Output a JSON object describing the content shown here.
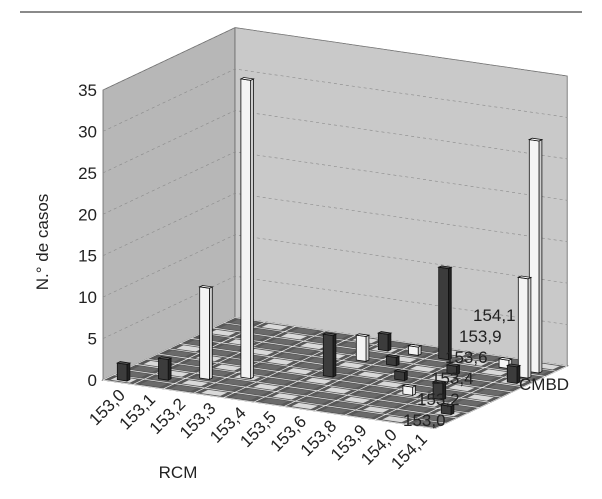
{
  "chart_data": {
    "type": "bar3d",
    "title": "",
    "ylabel": "N.° de casos",
    "xlabel": "RCM",
    "zlabel": "CMBD",
    "ylim": [
      0,
      35
    ],
    "yticks": [
      0,
      5,
      10,
      15,
      20,
      25,
      30,
      35
    ],
    "x_categories": [
      "153,0",
      "153,1",
      "153,2",
      "153,3",
      "153,4",
      "153,5",
      "153,6",
      "153,8",
      "153,9",
      "154,0",
      "154,1"
    ],
    "z_categories": [
      "153,0",
      "153,2",
      "153,4",
      "153,6",
      "153,9",
      "154,1"
    ],
    "z_tick_labels": [
      "153,0",
      "153,2",
      "153,4",
      "153,6",
      "153,9",
      "154,1"
    ],
    "bars": [
      {
        "x": "153,0",
        "z": "153,0",
        "value": 2
      },
      {
        "x": "153,1",
        "z": "153,1",
        "value": 2.5
      },
      {
        "x": "153,2",
        "z": "153,2",
        "value": 11
      },
      {
        "x": "153,3",
        "z": "153,3",
        "value": 36
      },
      {
        "x": "153,5",
        "z": "153,5",
        "value": 5
      },
      {
        "x": "153,5",
        "z": "153,9",
        "value": 3
      },
      {
        "x": "153,5",
        "z": "154,1",
        "value": 2
      },
      {
        "x": "153,6",
        "z": "153,9",
        "value": 1
      },
      {
        "x": "153,6",
        "z": "154,1",
        "value": 1
      },
      {
        "x": "153,8",
        "z": "153,6",
        "value": 1
      },
      {
        "x": "153,8",
        "z": "154,1",
        "value": 11
      },
      {
        "x": "153,9",
        "z": "153,4",
        "value": 1
      },
      {
        "x": "153,9",
        "z": "153,9",
        "value": 1
      },
      {
        "x": "154,0",
        "z": "153,4",
        "value": 2
      },
      {
        "x": "154,0",
        "z": "154,1",
        "value": 1
      },
      {
        "x": "154,1",
        "z": "153,2",
        "value": 1
      },
      {
        "x": "154,1",
        "z": "153,9",
        "value": 2
      },
      {
        "x": "154,1",
        "z": "154,0",
        "value": 12
      },
      {
        "x": "154,1",
        "z": "154,1",
        "value": 28
      }
    ],
    "grid": true,
    "colors": {
      "wall": "#c9c9c9",
      "floor_cell": "#585858",
      "floor_line": "#eeeeee",
      "bar_white": "#f4f4f4",
      "bar_dark": "#3c3c3c"
    }
  }
}
